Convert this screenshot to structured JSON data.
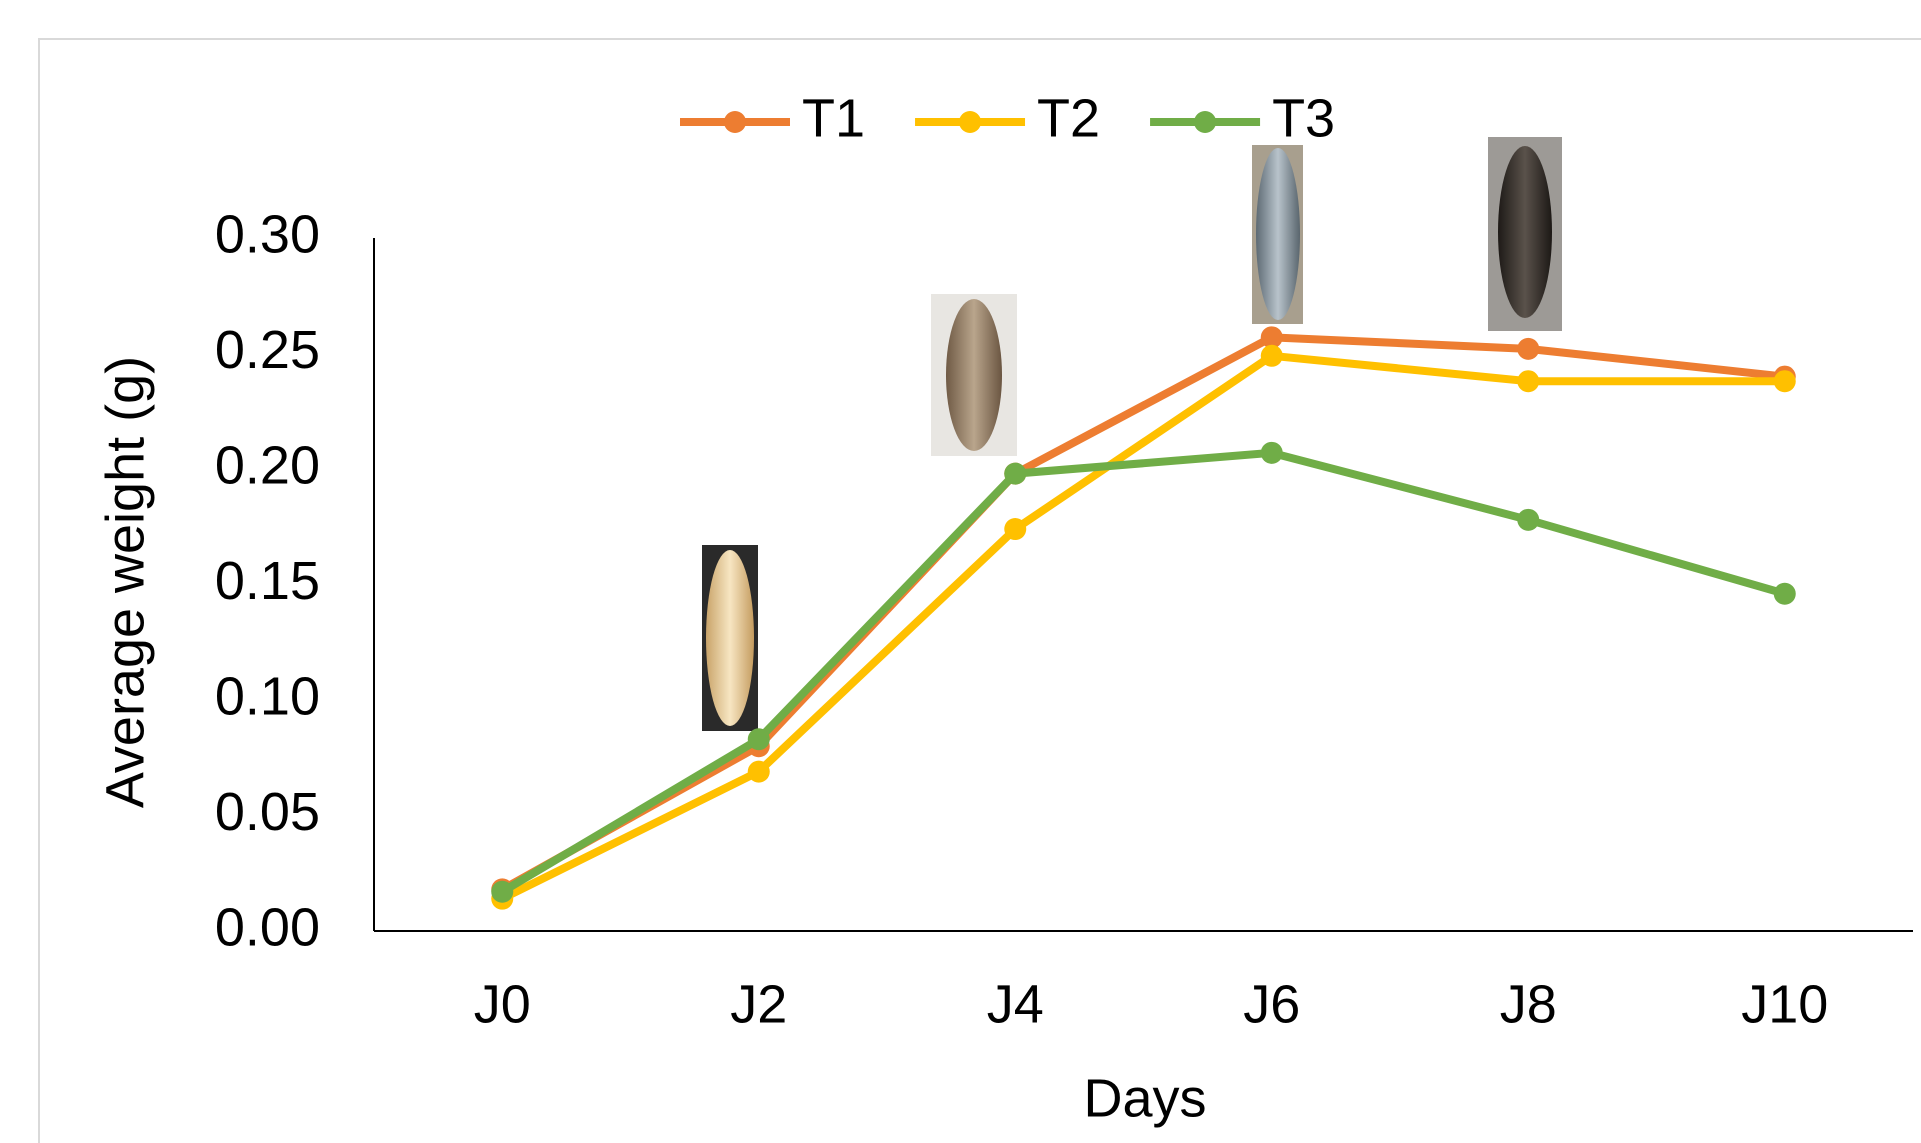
{
  "chart_data": {
    "type": "line",
    "x_label": "Days",
    "y_label": "Average weight (g)",
    "categories": [
      "J0",
      "J2",
      "J4",
      "J6",
      "J8",
      "J10"
    ],
    "series": [
      {
        "name": "T1",
        "color": "#ed7d31",
        "values": [
          0.018,
          0.08,
          0.198,
          0.257,
          0.252,
          0.24
        ]
      },
      {
        "name": "T2",
        "color": "#ffc000",
        "values": [
          0.014,
          0.069,
          0.174,
          0.249,
          0.238,
          0.238
        ]
      },
      {
        "name": "T3",
        "color": "#70ad47",
        "values": [
          0.017,
          0.083,
          0.198,
          0.207,
          0.178,
          0.146
        ]
      }
    ],
    "ylim": [
      0,
      0.3
    ],
    "yticks": [
      {
        "value": 0,
        "label": "0.00"
      },
      {
        "value": 0.05,
        "label": "0.05"
      },
      {
        "value": 0.1,
        "label": "0.10"
      },
      {
        "value": 0.15,
        "label": "0.15"
      },
      {
        "value": 0.2,
        "label": "0.20"
      },
      {
        "value": 0.25,
        "label": "0.25"
      },
      {
        "value": 0.3,
        "label": "0.30"
      }
    ],
    "grid": false,
    "legend": "top"
  }
}
